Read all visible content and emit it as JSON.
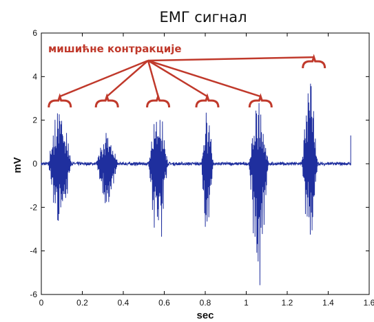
{
  "chart_data": {
    "type": "line",
    "title": "ЕМГ сигнал",
    "xlabel": "sec",
    "ylabel": "mV",
    "xlim": [
      0,
      1.6
    ],
    "ylim": [
      -6,
      6
    ],
    "xticks": [
      0,
      0.2,
      0.4,
      0.6,
      0.8,
      1,
      1.2,
      1.4,
      1.6
    ],
    "xtick_labels": [
      "0",
      "0.2",
      "0.4",
      "0.6",
      "0.8",
      "1",
      "1.2",
      "1.4",
      "1.6"
    ],
    "yticks": [
      -6,
      -4,
      -2,
      0,
      2,
      4,
      6
    ],
    "ytick_labels": [
      "-6",
      "-4",
      "-2",
      "0",
      "2",
      "4",
      "6"
    ],
    "grid": false,
    "line_color": "#1f2f9e",
    "annotation": {
      "text": "мишићне контракције",
      "color": "#c0392b",
      "bracket_levels": [
        {
          "x": 0.09,
          "y": 2.9
        },
        {
          "x": 0.32,
          "y": 2.9
        },
        {
          "x": 0.57,
          "y": 2.9
        },
        {
          "x": 0.81,
          "y": 2.9
        },
        {
          "x": 1.07,
          "y": 2.9
        },
        {
          "x": 1.33,
          "y": 4.7
        }
      ]
    },
    "bursts": [
      {
        "center": 0.09,
        "width": 0.12,
        "peak_pos": 2.8,
        "peak_neg": -3.4
      },
      {
        "center": 0.32,
        "width": 0.11,
        "peak_pos": 1.8,
        "peak_neg": -2.3
      },
      {
        "center": 0.57,
        "width": 0.1,
        "peak_pos": 2.8,
        "peak_neg": -4.2
      },
      {
        "center": 0.81,
        "width": 0.06,
        "peak_pos": 2.7,
        "peak_neg": -4.0
      },
      {
        "center": 1.06,
        "width": 0.1,
        "peak_pos": 3.0,
        "peak_neg": -5.9
      },
      {
        "center": 1.31,
        "width": 0.08,
        "peak_pos": 4.3,
        "peak_neg": -4.5
      }
    ],
    "end_x": 1.51
  }
}
